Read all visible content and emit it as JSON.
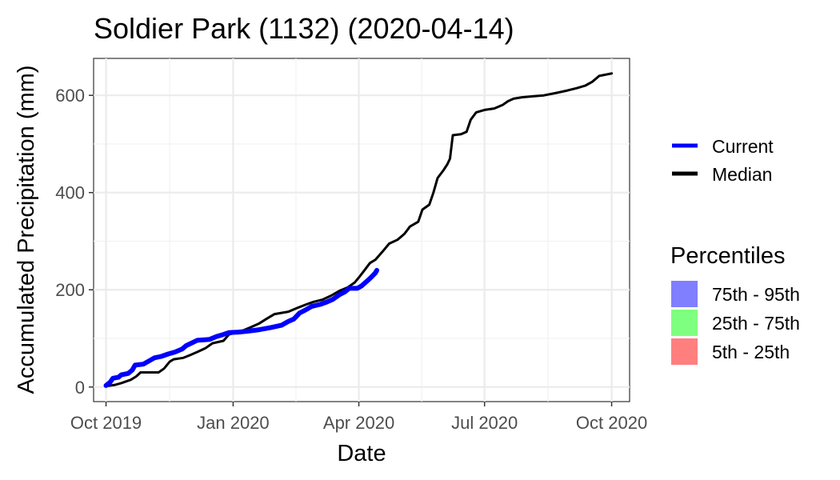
{
  "chart_data": {
    "type": "line",
    "title": "Soldier Park (1132) (2020-04-14)",
    "xlabel": "Date",
    "ylabel": "Accumulated Precipitation (mm)",
    "x_range": [
      "2019-09-22",
      "2020-10-14"
    ],
    "ylim": [
      -30,
      676
    ],
    "x_ticks": [
      {
        "date": "2019-10-01",
        "label": "Oct 2019"
      },
      {
        "date": "2020-01-01",
        "label": "Jan 2020"
      },
      {
        "date": "2020-04-01",
        "label": "Apr 2020"
      },
      {
        "date": "2020-07-01",
        "label": "Jul 2020"
      },
      {
        "date": "2020-10-01",
        "label": "Oct 2020"
      }
    ],
    "y_ticks": [
      {
        "value": 0,
        "label": "0"
      },
      {
        "value": 200,
        "label": "200"
      },
      {
        "value": 400,
        "label": "400"
      },
      {
        "value": 600,
        "label": "600"
      }
    ],
    "grid": true,
    "legend_position": "right",
    "series": [
      {
        "name": "Current",
        "color": "#0000ff",
        "points": [
          [
            "2019-10-01",
            3
          ],
          [
            "2019-10-04",
            10
          ],
          [
            "2019-10-06",
            18
          ],
          [
            "2019-10-10",
            20
          ],
          [
            "2019-10-12",
            25
          ],
          [
            "2019-10-17",
            28
          ],
          [
            "2019-10-20",
            35
          ],
          [
            "2019-10-22",
            45
          ],
          [
            "2019-10-28",
            47
          ],
          [
            "2019-11-02",
            55
          ],
          [
            "2019-11-05",
            60
          ],
          [
            "2019-11-10",
            63
          ],
          [
            "2019-11-15",
            68
          ],
          [
            "2019-11-20",
            72
          ],
          [
            "2019-11-25",
            78
          ],
          [
            "2019-11-28",
            85
          ],
          [
            "2019-12-03",
            92
          ],
          [
            "2019-12-06",
            96
          ],
          [
            "2019-12-15",
            98
          ],
          [
            "2019-12-20",
            104
          ],
          [
            "2019-12-25",
            108
          ],
          [
            "2019-12-29",
            112
          ],
          [
            "2020-01-05",
            113
          ],
          [
            "2020-01-12",
            115
          ],
          [
            "2020-01-20",
            118
          ],
          [
            "2020-01-28",
            122
          ],
          [
            "2020-02-05",
            127
          ],
          [
            "2020-02-10",
            135
          ],
          [
            "2020-02-14",
            140
          ],
          [
            "2020-02-18",
            152
          ],
          [
            "2020-02-22",
            158
          ],
          [
            "2020-02-27",
            166
          ],
          [
            "2020-03-04",
            170
          ],
          [
            "2020-03-09",
            175
          ],
          [
            "2020-03-13",
            180
          ],
          [
            "2020-03-18",
            190
          ],
          [
            "2020-03-22",
            196
          ],
          [
            "2020-03-25",
            203
          ],
          [
            "2020-03-31",
            203
          ],
          [
            "2020-04-03",
            208
          ],
          [
            "2020-04-07",
            218
          ],
          [
            "2020-04-10",
            226
          ],
          [
            "2020-04-13",
            235
          ],
          [
            "2020-04-14",
            240
          ]
        ]
      },
      {
        "name": "Median",
        "color": "#000000",
        "points": [
          [
            "2019-10-01",
            2
          ],
          [
            "2019-10-07",
            4
          ],
          [
            "2019-10-12",
            8
          ],
          [
            "2019-10-19",
            15
          ],
          [
            "2019-10-23",
            22
          ],
          [
            "2019-10-26",
            30
          ],
          [
            "2019-11-08",
            30
          ],
          [
            "2019-11-12",
            38
          ],
          [
            "2019-11-16",
            52
          ],
          [
            "2019-11-19",
            57
          ],
          [
            "2019-11-26",
            60
          ],
          [
            "2019-12-01",
            66
          ],
          [
            "2019-12-06",
            72
          ],
          [
            "2019-12-12",
            80
          ],
          [
            "2019-12-17",
            90
          ],
          [
            "2019-12-25",
            95
          ],
          [
            "2019-12-29",
            108
          ],
          [
            "2020-01-07",
            115
          ],
          [
            "2020-01-13",
            122
          ],
          [
            "2020-01-20",
            131
          ],
          [
            "2020-01-25",
            140
          ],
          [
            "2020-01-31",
            150
          ],
          [
            "2020-02-10",
            155
          ],
          [
            "2020-02-16",
            162
          ],
          [
            "2020-02-23",
            170
          ],
          [
            "2020-02-28",
            175
          ],
          [
            "2020-03-06",
            180
          ],
          [
            "2020-03-12",
            188
          ],
          [
            "2020-03-18",
            198
          ],
          [
            "2020-03-24",
            205
          ],
          [
            "2020-03-29",
            215
          ],
          [
            "2020-04-01",
            225
          ],
          [
            "2020-04-05",
            240
          ],
          [
            "2020-04-09",
            255
          ],
          [
            "2020-04-13",
            262
          ],
          [
            "2020-04-18",
            278
          ],
          [
            "2020-04-23",
            295
          ],
          [
            "2020-04-29",
            303
          ],
          [
            "2020-05-04",
            315
          ],
          [
            "2020-05-08",
            330
          ],
          [
            "2020-05-14",
            340
          ],
          [
            "2020-05-17",
            365
          ],
          [
            "2020-05-22",
            375
          ],
          [
            "2020-05-25",
            400
          ],
          [
            "2020-05-28",
            430
          ],
          [
            "2020-06-01",
            445
          ],
          [
            "2020-06-04",
            458
          ],
          [
            "2020-06-06",
            470
          ],
          [
            "2020-06-08",
            518
          ],
          [
            "2020-06-14",
            520
          ],
          [
            "2020-06-18",
            525
          ],
          [
            "2020-06-21",
            550
          ],
          [
            "2020-06-25",
            565
          ],
          [
            "2020-07-01",
            570
          ],
          [
            "2020-07-08",
            573
          ],
          [
            "2020-07-14",
            580
          ],
          [
            "2020-07-18",
            588
          ],
          [
            "2020-07-22",
            593
          ],
          [
            "2020-07-28",
            596
          ],
          [
            "2020-08-05",
            598
          ],
          [
            "2020-08-13",
            600
          ],
          [
            "2020-08-22",
            605
          ],
          [
            "2020-08-30",
            610
          ],
          [
            "2020-09-06",
            615
          ],
          [
            "2020-09-12",
            620
          ],
          [
            "2020-09-17",
            628
          ],
          [
            "2020-09-22",
            640
          ],
          [
            "2020-10-01",
            645
          ]
        ]
      }
    ],
    "legend": {
      "lines": [
        {
          "label": "Current",
          "color": "#0000ff"
        },
        {
          "label": "Median",
          "color": "#000000"
        }
      ],
      "percentiles_title": "Percentiles",
      "percentiles": [
        {
          "label": "75th - 95th",
          "color": "#7f7fff"
        },
        {
          "label": "25th - 75th",
          "color": "#7fff7f"
        },
        {
          "label": "5th - 25th",
          "color": "#ff7f7f"
        }
      ]
    }
  }
}
